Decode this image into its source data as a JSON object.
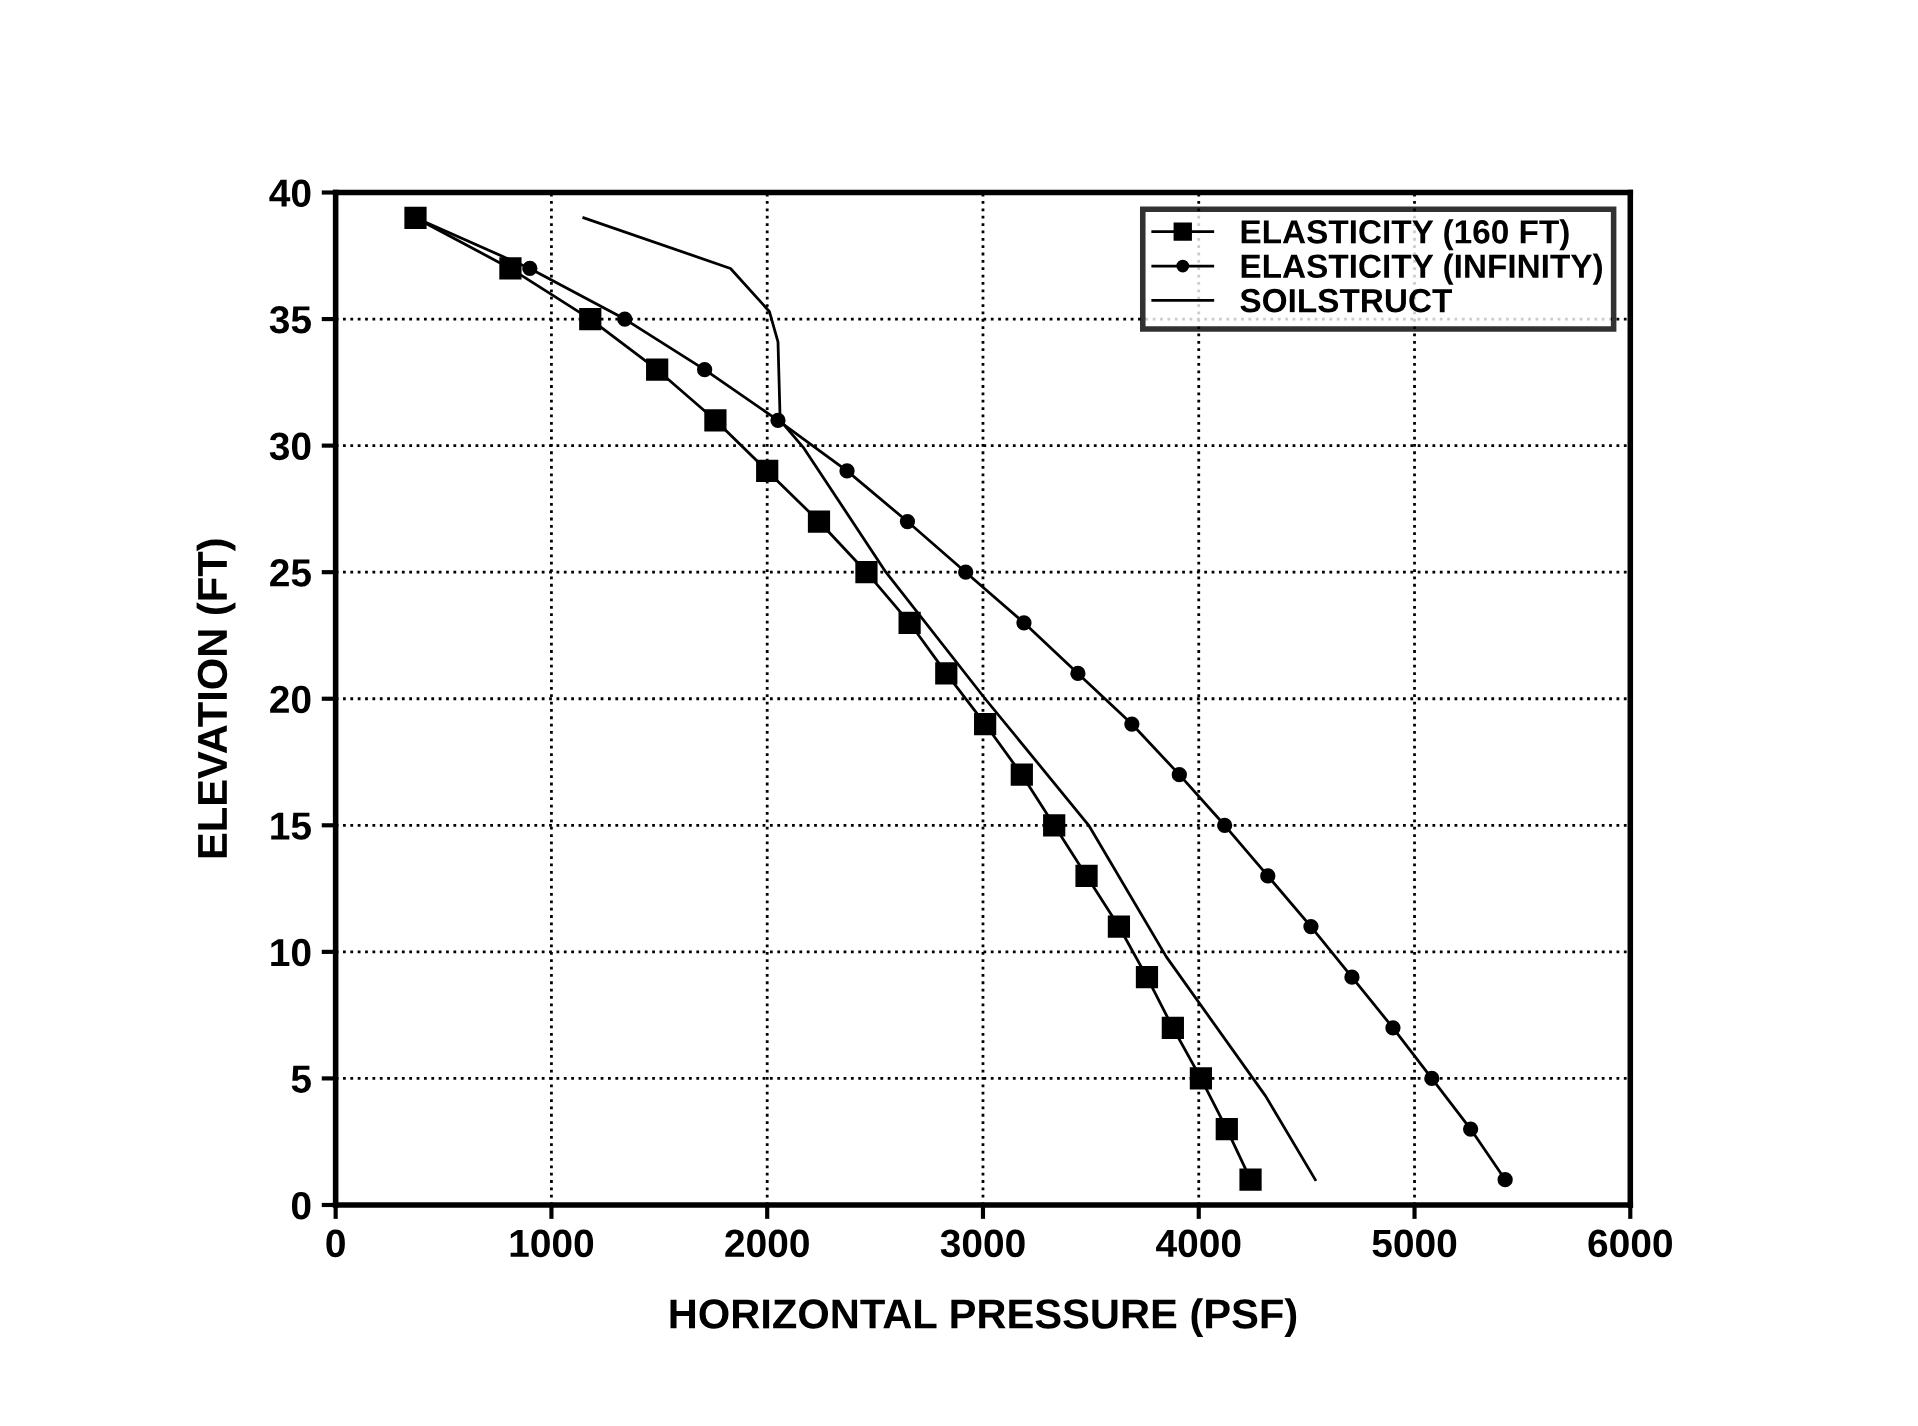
{
  "chart_data": {
    "type": "line",
    "xlabel": "HORIZONTAL PRESSURE (PSF)",
    "ylabel": "ELEVATION (FT)",
    "xlim": [
      0,
      6000
    ],
    "xticks": [
      0,
      1000,
      2000,
      3000,
      4000,
      5000,
      6000
    ],
    "ylim": [
      0,
      40
    ],
    "yticks": [
      0,
      5,
      10,
      15,
      20,
      25,
      30,
      35,
      40
    ],
    "grid": true,
    "legend": "top right",
    "line_style": "solid",
    "series": [
      {
        "name": "ELASTICITY (160 FT)",
        "color": "#000000",
        "marker": "square",
        "x": [
          370,
          810,
          1180,
          1490,
          1760,
          2000,
          2240,
          2460,
          2660,
          2830,
          3010,
          3180,
          3330,
          3480,
          3630,
          3760,
          3880,
          4010,
          4130,
          4240
        ],
        "values": [
          39,
          37,
          35,
          33,
          31,
          29,
          27,
          25,
          23,
          21,
          19,
          17,
          15,
          13,
          11,
          9,
          7,
          5,
          3,
          1
        ]
      },
      {
        "name": "ELASTICITY (INFINITY)",
        "color": "#000000",
        "marker": "circle",
        "x": [
          370,
          900,
          1340,
          1710,
          2050,
          2370,
          2650,
          2920,
          3190,
          3440,
          3690,
          3910,
          4120,
          4320,
          4520,
          4710,
          4900,
          5080,
          5260,
          5420
        ],
        "values": [
          39,
          37,
          35,
          33,
          31,
          29,
          27,
          25,
          23,
          21,
          19,
          17,
          15,
          13,
          11,
          9,
          7,
          5,
          3,
          1
        ]
      },
      {
        "name": "SOILSTRUCT",
        "color": "#000000",
        "marker": "none",
        "x": [
          1150,
          1830,
          2010,
          2050,
          2060,
          2170,
          2550,
          3010,
          3490,
          3850,
          4310,
          4540
        ],
        "values": [
          39,
          37,
          35.3,
          34.1,
          31,
          29.9,
          25,
          20,
          15,
          9.8,
          4.3,
          1
        ]
      }
    ]
  }
}
